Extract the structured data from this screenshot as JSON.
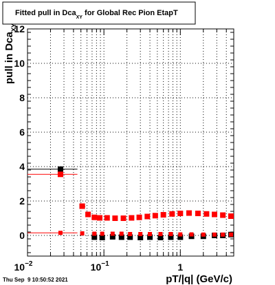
{
  "chart_data": {
    "type": "scatter",
    "title": {
      "prefix": "Fitted pull in Dca",
      "subscript": "XY",
      "suffix": " for Global Rec Pion EtapT"
    },
    "xlabel": "pT/|q| (GeV/c)",
    "ylabel": {
      "main": "pull in Dca",
      "subscript": "XY"
    },
    "xscale": "log",
    "xlim": [
      0.01,
      5.0
    ],
    "ylim": [
      -1.2,
      12.0
    ],
    "grid": true,
    "x_ticks": [
      {
        "value": 0.01,
        "base": "10",
        "exp": "−2"
      },
      {
        "value": 0.1,
        "base": "10",
        "exp": "−1"
      },
      {
        "value": 1,
        "base": "1",
        "exp": ""
      }
    ],
    "y_ticks": [
      0,
      2,
      4,
      6,
      8,
      10,
      12
    ],
    "series": [
      {
        "color": "#000000",
        "points": [
          {
            "x": 0.027,
            "y": 3.85,
            "xerr": [
              0.01,
              0.045
            ]
          },
          {
            "x": 0.052,
            "y": 1.7,
            "xerr": [
              0.048,
              0.057
            ]
          },
          {
            "x": 0.075,
            "y": -0.1
          },
          {
            "x": 0.095,
            "y": -0.12
          },
          {
            "x": 0.13,
            "y": -0.08
          },
          {
            "x": 0.17,
            "y": -0.1
          },
          {
            "x": 0.22,
            "y": -0.1
          },
          {
            "x": 0.3,
            "y": -0.12
          },
          {
            "x": 0.4,
            "y": -0.1
          },
          {
            "x": 0.55,
            "y": -0.12
          },
          {
            "x": 0.75,
            "y": -0.1
          },
          {
            "x": 1.0,
            "y": -0.1
          },
          {
            "x": 1.4,
            "y": -0.05
          },
          {
            "x": 2.0,
            "y": -0.05
          },
          {
            "x": 2.8,
            "y": 0.0
          },
          {
            "x": 3.6,
            "y": 0.0
          },
          {
            "x": 4.6,
            "y": 0.05
          }
        ]
      },
      {
        "color": "#ff0000",
        "points": [
          {
            "x": 0.027,
            "y": 3.55,
            "xerr": [
              0.01,
              0.045
            ]
          },
          {
            "x": 0.052,
            "y": 1.7,
            "xerr": [
              0.048,
              0.057
            ]
          },
          {
            "x": 0.062,
            "y": 1.22
          },
          {
            "x": 0.075,
            "y": 1.05
          },
          {
            "x": 0.088,
            "y": 1.02
          },
          {
            "x": 0.11,
            "y": 1.02
          },
          {
            "x": 0.14,
            "y": 1.0
          },
          {
            "x": 0.18,
            "y": 1.0
          },
          {
            "x": 0.23,
            "y": 1.02
          },
          {
            "x": 0.29,
            "y": 1.05
          },
          {
            "x": 0.37,
            "y": 1.1
          },
          {
            "x": 0.47,
            "y": 1.15
          },
          {
            "x": 0.6,
            "y": 1.2
          },
          {
            "x": 0.78,
            "y": 1.25
          },
          {
            "x": 1.0,
            "y": 1.28
          },
          {
            "x": 1.3,
            "y": 1.3
          },
          {
            "x": 1.7,
            "y": 1.28
          },
          {
            "x": 2.2,
            "y": 1.25
          },
          {
            "x": 2.8,
            "y": 1.22
          },
          {
            "x": 3.6,
            "y": 1.18
          },
          {
            "x": 4.6,
            "y": 1.12
          }
        ]
      },
      {
        "color": "#ff0000",
        "points": [
          {
            "x": 0.027,
            "y": 0.15,
            "xerr": [
              0.01,
              0.045
            ]
          },
          {
            "x": 0.052,
            "y": 0.12
          },
          {
            "x": 0.075,
            "y": 0.1
          },
          {
            "x": 0.095,
            "y": 0.1
          },
          {
            "x": 0.13,
            "y": 0.1
          },
          {
            "x": 0.17,
            "y": 0.1
          },
          {
            "x": 0.22,
            "y": 0.08
          },
          {
            "x": 0.3,
            "y": 0.08
          },
          {
            "x": 0.4,
            "y": 0.08
          },
          {
            "x": 0.55,
            "y": 0.08
          },
          {
            "x": 0.75,
            "y": 0.08
          },
          {
            "x": 1.0,
            "y": 0.06
          },
          {
            "x": 1.4,
            "y": 0.06
          },
          {
            "x": 2.0,
            "y": 0.05
          },
          {
            "x": 2.8,
            "y": 0.05
          },
          {
            "x": 3.6,
            "y": 0.05
          },
          {
            "x": 4.6,
            "y": 0.05
          }
        ]
      }
    ],
    "timestamp": "Thu Sep  9 10:50:52 2021"
  }
}
